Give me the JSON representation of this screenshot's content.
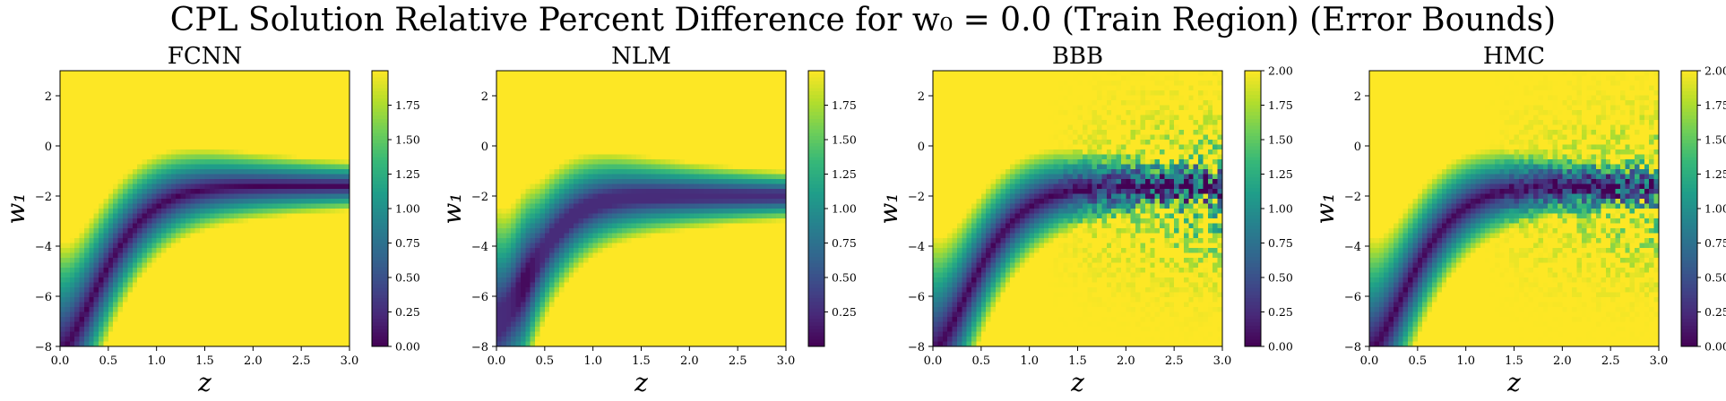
{
  "figure": {
    "suptitle": "CPL Solution Relative Percent Difference for w₀ = 0.0 (Train Region) (Error Bounds)"
  },
  "chart_data": [
    {
      "type": "heatmap",
      "title": "FCNN",
      "model": "FCNN",
      "xlabel": "z",
      "ylabel": "w₁",
      "xlim": [
        0,
        3
      ],
      "ylim": [
        -8,
        3
      ],
      "xticks": [
        "0.0",
        "0.5",
        "1.0",
        "1.5",
        "2.0",
        "2.5",
        "3.0"
      ],
      "yticks": [
        "2",
        "0",
        "−2",
        "−4",
        "−6",
        "−8"
      ],
      "colorbar": {
        "min": 0,
        "max": 2.0,
        "ticks": [
          "0.00",
          "0.25",
          "0.50",
          "0.75",
          "1.00",
          "1.25",
          "1.50",
          "1.75"
        ]
      },
      "colormap": [
        "#440154",
        "#482878",
        "#3e4989",
        "#31688e",
        "#26828e",
        "#1f9e89",
        "#35b779",
        "#6ece58",
        "#b5de2b",
        "#fde725"
      ],
      "noise": 0.0
    },
    {
      "type": "heatmap",
      "title": "NLM",
      "model": "NLM",
      "xlabel": "z",
      "ylabel": "w₁",
      "xlim": [
        0,
        3
      ],
      "ylim": [
        -8,
        3
      ],
      "xticks": [
        "0.0",
        "0.5",
        "1.0",
        "1.5",
        "2.0",
        "2.5",
        "3.0"
      ],
      "yticks": [
        "2",
        "0",
        "−2",
        "−4",
        "−6",
        "−8"
      ],
      "colorbar": {
        "min": 0,
        "max": 2.0,
        "ticks": [
          "0.25",
          "0.50",
          "0.75",
          "1.00",
          "1.25",
          "1.50",
          "1.75"
        ]
      },
      "colormap": [
        "#440154",
        "#482878",
        "#3e4989",
        "#31688e",
        "#26828e",
        "#1f9e89",
        "#35b779",
        "#6ece58",
        "#b5de2b",
        "#fde725"
      ],
      "noise": 0.0
    },
    {
      "type": "heatmap",
      "title": "BBB",
      "model": "BBB",
      "xlabel": "z",
      "ylabel": "w₁",
      "xlim": [
        0,
        3
      ],
      "ylim": [
        -8,
        3
      ],
      "xticks": [
        "0.0",
        "0.5",
        "1.0",
        "1.5",
        "2.0",
        "2.5",
        "3.0"
      ],
      "yticks": [
        "2",
        "0",
        "−2",
        "−4",
        "−6",
        "−8"
      ],
      "colorbar": {
        "min": 0,
        "max": 2.0,
        "ticks": [
          "0.00",
          "0.25",
          "0.50",
          "0.75",
          "1.00",
          "1.25",
          "1.50",
          "1.75",
          "2.00"
        ]
      },
      "colormap": [
        "#440154",
        "#482878",
        "#3e4989",
        "#31688e",
        "#26828e",
        "#1f9e89",
        "#35b779",
        "#6ece58",
        "#b5de2b",
        "#fde725"
      ],
      "noise": 1.0
    },
    {
      "type": "heatmap",
      "title": "HMC",
      "model": "HMC",
      "xlabel": "z",
      "ylabel": "w₁",
      "xlim": [
        0,
        3
      ],
      "ylim": [
        -8,
        3
      ],
      "xticks": [
        "0.0",
        "0.5",
        "1.0",
        "1.5",
        "2.0",
        "2.5",
        "3.0"
      ],
      "yticks": [
        "2",
        "0",
        "−2",
        "−4",
        "−6",
        "−8"
      ],
      "colorbar": {
        "min": 0,
        "max": 2.0,
        "ticks": [
          "0.00",
          "0.25",
          "0.50",
          "0.75",
          "1.00",
          "1.25",
          "1.50",
          "1.75",
          "2.00"
        ]
      },
      "colormap": [
        "#440154",
        "#482878",
        "#3e4989",
        "#31688e",
        "#26828e",
        "#1f9e89",
        "#35b779",
        "#6ece58",
        "#b5de2b",
        "#fde725"
      ],
      "noise": 0.8
    }
  ]
}
